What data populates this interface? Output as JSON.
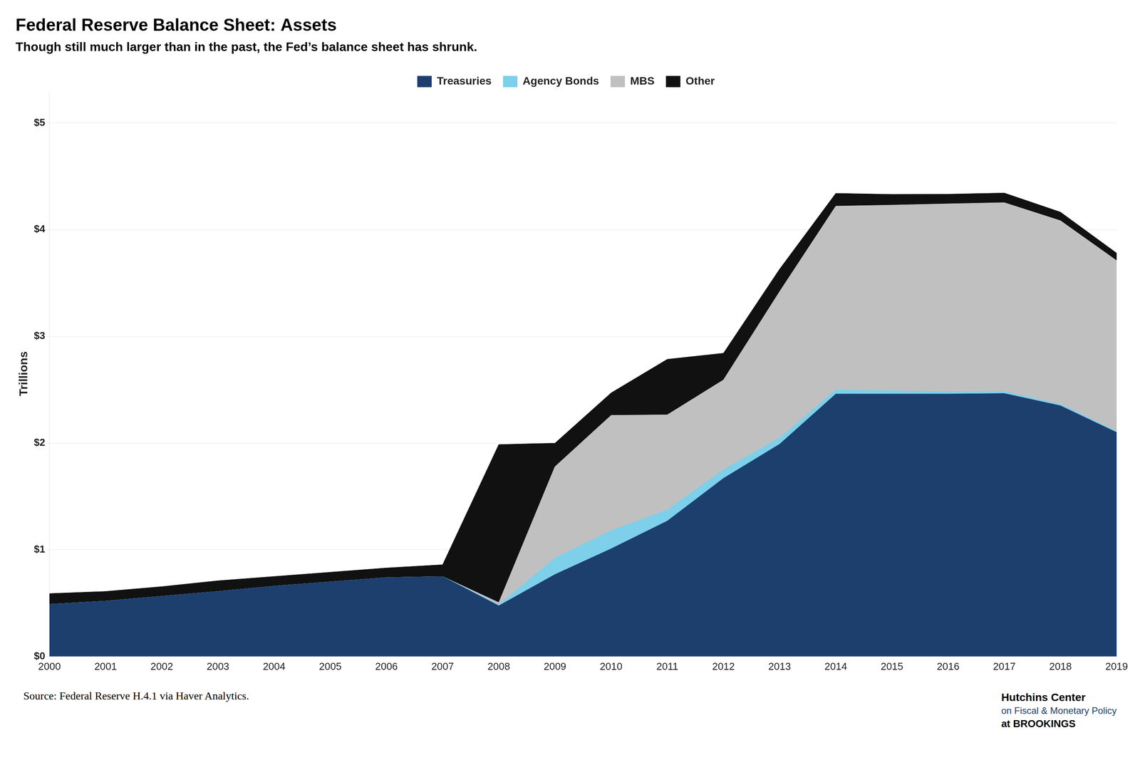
{
  "chart_data": {
    "type": "area",
    "stacked": true,
    "title": "Federal Reserve Balance Sheet: Assets",
    "subtitle": "Though still much larger than in the past, the Fed’s balance sheet has shrunk.",
    "ylabel": "Trillions",
    "x": [
      2000,
      2001,
      2002,
      2003,
      2004,
      2005,
      2006,
      2007,
      2008,
      2009,
      2010,
      2011,
      2012,
      2013,
      2014,
      2015,
      2016,
      2017,
      2018,
      2019
    ],
    "series": [
      {
        "name": "Treasuries",
        "color": "#1c3f6e",
        "values": [
          0.49,
          0.52,
          0.565,
          0.61,
          0.66,
          0.7,
          0.74,
          0.75,
          0.476,
          0.769,
          1.01,
          1.27,
          1.67,
          1.99,
          2.46,
          2.46,
          2.46,
          2.465,
          2.35,
          2.1
        ]
      },
      {
        "name": "Agency Bonds",
        "color": "#7ecfea",
        "values": [
          0.0,
          0.0,
          0.0,
          0.0,
          0.0,
          0.0,
          0.0,
          0.0,
          0.01,
          0.155,
          0.17,
          0.105,
          0.082,
          0.06,
          0.04,
          0.03,
          0.022,
          0.018,
          0.014,
          0.01
        ]
      },
      {
        "name": "MBS",
        "color": "#c0c0c0",
        "values": [
          0.0,
          0.0,
          0.0,
          0.0,
          0.0,
          0.0,
          0.0,
          0.0,
          0.02,
          0.855,
          1.08,
          0.89,
          0.84,
          1.37,
          1.72,
          1.74,
          1.76,
          1.77,
          1.72,
          1.6
        ]
      },
      {
        "name": "Other",
        "color": "#111111",
        "values": [
          0.1,
          0.09,
          0.09,
          0.1,
          0.09,
          0.09,
          0.09,
          0.11,
          1.48,
          0.22,
          0.21,
          0.52,
          0.25,
          0.21,
          0.12,
          0.1,
          0.09,
          0.09,
          0.08,
          0.07
        ]
      }
    ],
    "xlim": [
      2000,
      2019
    ],
    "xticks": [
      2000,
      2001,
      2002,
      2003,
      2004,
      2005,
      2006,
      2007,
      2008,
      2009,
      2010,
      2011,
      2012,
      2013,
      2014,
      2015,
      2016,
      2017,
      2018,
      2019
    ],
    "ylim": [
      0,
      5.3
    ],
    "yticks": [
      {
        "value": 0,
        "label": "$0"
      },
      {
        "value": 1,
        "label": "$1"
      },
      {
        "value": 2,
        "label": "$2"
      },
      {
        "value": 3,
        "label": "$3"
      },
      {
        "value": 4,
        "label": "$4"
      },
      {
        "value": 5,
        "label": "$5"
      }
    ],
    "grid": true,
    "legend": "top",
    "annotations": [
      "Source: Federal Reserve H.4.1 via Haver Analytics.",
      "Hutchins Center",
      "on Fiscal & Monetary Policy",
      "at BROOKINGS"
    ]
  }
}
